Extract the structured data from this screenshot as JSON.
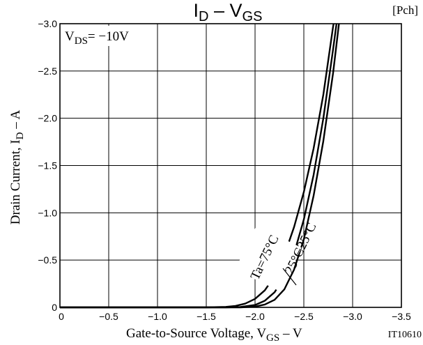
{
  "chart_data": {
    "type": "line",
    "title": {
      "main": "I",
      "main_sub": "D",
      "sep": " – ",
      "var": "V",
      "var_sub": "GS"
    },
    "tag": "[Pch]",
    "condition": {
      "prefix": "V",
      "sub": "DS",
      "value": "= −10V"
    },
    "xlabel": {
      "text": "Gate-to-Source Voltage, V",
      "sub": "GS",
      "unit": " – V"
    },
    "ylabel": {
      "text": "Drain Current, I",
      "sub": "D",
      "unit": " – A"
    },
    "figure_id": "IT10610",
    "xlim": [
      0,
      -3.5
    ],
    "ylim": [
      0,
      -3.0
    ],
    "x_ticks": [
      {
        "v": 0,
        "label": "0"
      },
      {
        "v": -0.5,
        "label": "−0.5"
      },
      {
        "v": -1.0,
        "label": "−1.0"
      },
      {
        "v": -1.5,
        "label": "−1.5"
      },
      {
        "v": -2.0,
        "label": "−2.0"
      },
      {
        "v": -2.5,
        "label": "−2.5"
      },
      {
        "v": -3.0,
        "label": "−3.0"
      },
      {
        "v": -3.5,
        "label": "−3.5"
      }
    ],
    "y_ticks": [
      {
        "v": 0,
        "label": "0"
      },
      {
        "v": -0.5,
        "label": "−0.5"
      },
      {
        "v": -1.0,
        "label": "−1.0"
      },
      {
        "v": -1.5,
        "label": "−1.5"
      },
      {
        "v": -2.0,
        "label": "−2.0"
      },
      {
        "v": -2.5,
        "label": "−2.5"
      },
      {
        "v": -3.0,
        "label": "−3.0"
      }
    ],
    "grid": true,
    "series": [
      {
        "name": "Ta=75°C",
        "points": [
          [
            0,
            0
          ],
          [
            -1.5,
            0
          ],
          [
            -1.7,
            -0.005
          ],
          [
            -1.8,
            -0.015
          ],
          [
            -1.9,
            -0.04
          ],
          [
            -2.0,
            -0.09
          ],
          [
            -2.1,
            -0.18
          ],
          [
            -2.2,
            -0.33
          ],
          [
            -2.3,
            -0.55
          ],
          [
            -2.4,
            -0.85
          ],
          [
            -2.5,
            -1.22
          ],
          [
            -2.6,
            -1.68
          ],
          [
            -2.7,
            -2.25
          ],
          [
            -2.8,
            -2.97
          ],
          [
            -2.805,
            -3.0
          ]
        ]
      },
      {
        "name": "25°C",
        "points": [
          [
            0,
            0
          ],
          [
            -1.7,
            0
          ],
          [
            -1.85,
            -0.004
          ],
          [
            -2.0,
            -0.025
          ],
          [
            -2.1,
            -0.07
          ],
          [
            -2.2,
            -0.16
          ],
          [
            -2.3,
            -0.32
          ],
          [
            -2.4,
            -0.57
          ],
          [
            -2.5,
            -0.93
          ],
          [
            -2.6,
            -1.4
          ],
          [
            -2.7,
            -2.0
          ],
          [
            -2.8,
            -2.73
          ],
          [
            -2.835,
            -3.0
          ]
        ]
      },
      {
        "name": "−25°C",
        "points": [
          [
            0,
            0
          ],
          [
            -1.85,
            0
          ],
          [
            -2.0,
            -0.008
          ],
          [
            -2.1,
            -0.03
          ],
          [
            -2.2,
            -0.08
          ],
          [
            -2.3,
            -0.19
          ],
          [
            -2.4,
            -0.4
          ],
          [
            -2.5,
            -0.72
          ],
          [
            -2.6,
            -1.18
          ],
          [
            -2.7,
            -1.76
          ],
          [
            -2.8,
            -2.48
          ],
          [
            -2.86,
            -3.0
          ]
        ]
      }
    ]
  }
}
